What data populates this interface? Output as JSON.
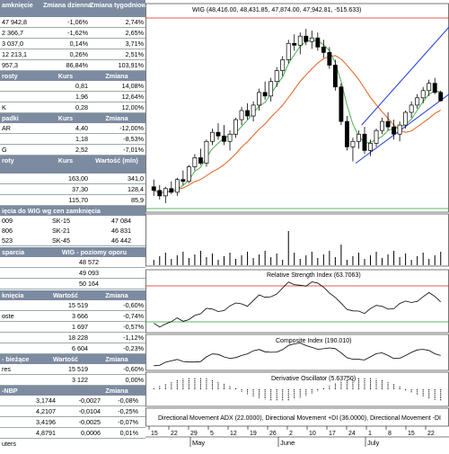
{
  "table1": {
    "headers": [
      "amknięcie",
      "Zmiana dzienna",
      "Zmiana tygodniowa"
    ],
    "rows": [
      [
        "47 942,8",
        "-1,06%",
        "2,74%"
      ],
      [
        "2 366,7",
        "-1,62%",
        "2,65%"
      ],
      [
        "3 037,0",
        "0,14%",
        "3,71%"
      ],
      [
        "12 213,1",
        "0,26%",
        "2,51%"
      ],
      [
        "957,3",
        "86,84%",
        "103,91%"
      ]
    ]
  },
  "gainers": {
    "headers": [
      "rosty",
      "Kurs",
      "Zmiana"
    ],
    "rows": [
      [
        "",
        "0,81",
        "14,08%"
      ],
      [
        "",
        "1,96",
        "12,64%"
      ],
      [
        "K",
        "0,28",
        "12,00%"
      ]
    ]
  },
  "losers": {
    "headers": [
      "padki",
      "Kurs",
      "Zmiana"
    ],
    "rows": [
      [
        "AR",
        "4,40",
        "-12,00%"
      ],
      [
        "",
        "1,18",
        "-8,53%"
      ],
      [
        "G",
        "2,52",
        "-7,01%"
      ]
    ]
  },
  "turnover": {
    "headers": [
      "roty",
      "Kurs",
      "Wartość (mln)"
    ],
    "rows": [
      [
        "",
        "163,00",
        "341,0"
      ],
      [
        "",
        "37,30",
        "128,4"
      ],
      [
        "",
        "115,70",
        "85,9"
      ]
    ]
  },
  "wig_levels": {
    "title": "ięcia do WIG wg cen zamknięcia",
    "rows": [
      [
        "009",
        "SK-15",
        "47 084"
      ],
      [
        "806",
        "SK-21",
        "46 831"
      ],
      [
        "523",
        "SK-45",
        "46 442"
      ]
    ]
  },
  "wig_support": {
    "headers": [
      "sparcia",
      "WIG - poziomy oporu"
    ],
    "values": [
      "48 572",
      "49 093",
      "50 164"
    ]
  },
  "volume": {
    "headers": [
      "knięcia",
      "Wartość",
      "Zmiana"
    ],
    "rows": [
      [
        "",
        "15 519",
        "-0,60%"
      ],
      [
        "oste",
        "3 666",
        "-0,74%"
      ],
      [
        "",
        "1 697",
        "-0,57%"
      ],
      [
        "",
        "18 228",
        "-1,12%"
      ],
      [
        "",
        "6 604",
        "-0,23%"
      ]
    ]
  },
  "current": {
    "headers": [
      "- bieżące",
      "Wartość",
      "Zmiana"
    ],
    "rows": [
      [
        "res",
        "15 519",
        "-0,60%"
      ],
      [
        "",
        "3 122",
        "0,00%"
      ]
    ]
  },
  "nbp": {
    "headers": [
      "-NBP",
      "",
      "Zmiana"
    ],
    "rows": [
      [
        "",
        "3,1744",
        "-0,0027",
        "-0,08%"
      ],
      [
        "",
        "4,2107",
        "-0,0104",
        "-0,25%"
      ],
      [
        "",
        "3,4196",
        "-0,0025",
        "-0,07%"
      ],
      [
        "",
        "4,8791",
        "0,0006",
        "0,01%"
      ]
    ],
    "footer": "uters"
  },
  "chart": {
    "main_title": "WIG (48,416.00, 48,431.85, 47,874.00, 47,942.81, -515.633)",
    "rsi_title": "Relative Strength Index (63.7063)",
    "ci_title": "Composite Index (190.010)",
    "do_title": "Derivative Oscillator (5.63750)",
    "adx_title": "Directional Movement ADX (22.0000), Directional Movement +DI (36.0000), Directional Movement -DI",
    "x_ticks": [
      "15",
      "22",
      "29",
      "5",
      "12",
      "19",
      "26",
      "2",
      "10",
      "17",
      "24",
      "1",
      "8",
      "15",
      "22"
    ],
    "months": [
      "May",
      "June",
      "July"
    ],
    "colors": {
      "up": "#ffffff",
      "down": "#000000",
      "ma_fast": "#4caf50",
      "ma_slow": "#e06020",
      "channel": "#1f3ad8",
      "ref_red": "#e02020",
      "ref_green": "#20a020"
    }
  },
  "chart_data": {
    "type": "candlestick",
    "title": "WIG",
    "ohlc": [
      [
        43200,
        43600,
        42700,
        43000
      ],
      [
        43000,
        43300,
        42500,
        42700
      ],
      [
        42700,
        43200,
        42300,
        43100
      ],
      [
        43100,
        43500,
        42800,
        42900
      ],
      [
        42900,
        43700,
        42700,
        43600
      ],
      [
        43600,
        44100,
        43300,
        43500
      ],
      [
        43500,
        44400,
        43400,
        44300
      ],
      [
        44300,
        45000,
        44100,
        44800
      ],
      [
        44800,
        45300,
        44400,
        44500
      ],
      [
        44500,
        45800,
        44300,
        45700
      ],
      [
        45700,
        46400,
        45500,
        46200
      ],
      [
        46200,
        46700,
        45800,
        46000
      ],
      [
        46000,
        46600,
        45500,
        45700
      ],
      [
        45700,
        46300,
        45200,
        46100
      ],
      [
        46100,
        47000,
        45900,
        46900
      ],
      [
        46900,
        47600,
        46600,
        47400
      ],
      [
        47400,
        47800,
        46900,
        47100
      ],
      [
        47100,
        47900,
        46800,
        47700
      ],
      [
        47700,
        48600,
        47400,
        48400
      ],
      [
        48400,
        49000,
        48000,
        48200
      ],
      [
        48200,
        49200,
        47900,
        49000
      ],
      [
        49000,
        49800,
        48700,
        49600
      ],
      [
        49600,
        50400,
        49300,
        50200
      ],
      [
        50200,
        51300,
        50000,
        51100
      ],
      [
        51100,
        51600,
        50700,
        51000
      ],
      [
        51000,
        51700,
        50500,
        51500
      ],
      [
        51500,
        51900,
        51000,
        51200
      ],
      [
        51200,
        51800,
        50800,
        51400
      ],
      [
        51400,
        51700,
        50700,
        50900
      ],
      [
        50900,
        51300,
        50300,
        50600
      ],
      [
        50600,
        50900,
        49700,
        49900
      ],
      [
        49900,
        50200,
        48500,
        48700
      ],
      [
        48700,
        48900,
        46600,
        46800
      ],
      [
        46800,
        47100,
        45200,
        45400
      ],
      [
        45400,
        45900,
        44600,
        45700
      ],
      [
        45700,
        46300,
        45300,
        46100
      ],
      [
        46100,
        46500,
        45000,
        45200
      ],
      [
        45200,
        45800,
        44900,
        45600
      ],
      [
        45600,
        46400,
        45400,
        46300
      ],
      [
        46300,
        47000,
        46100,
        46800
      ],
      [
        46800,
        47300,
        46300,
        46500
      ],
      [
        46500,
        46900,
        45800,
        46100
      ],
      [
        46100,
        46800,
        45700,
        46600
      ],
      [
        46600,
        47400,
        46400,
        47300
      ],
      [
        47300,
        47900,
        47000,
        47700
      ],
      [
        47700,
        48300,
        47500,
        48100
      ],
      [
        48100,
        48700,
        47800,
        48500
      ],
      [
        48500,
        49100,
        48200,
        48900
      ],
      [
        48900,
        49200,
        48300,
        48400
      ],
      [
        48400,
        48500,
        47900,
        47940
      ]
    ],
    "ylim": [
      42000,
      52500
    ]
  }
}
